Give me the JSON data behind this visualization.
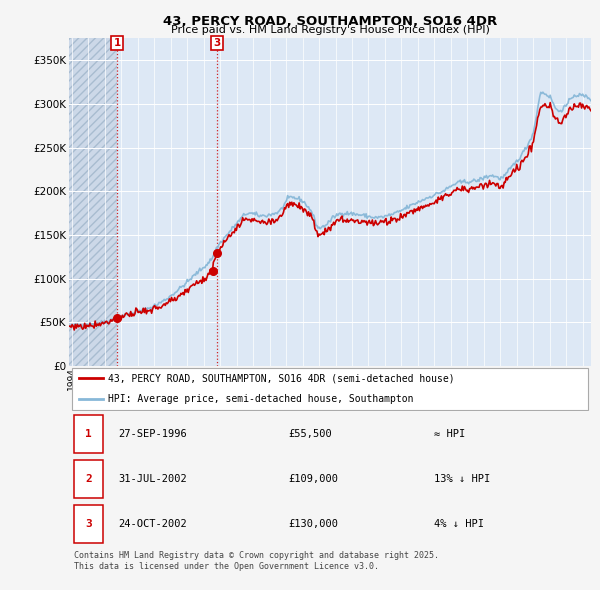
{
  "title_line1": "43, PERCY ROAD, SOUTHAMPTON, SO16 4DR",
  "title_line2": "Price paid vs. HM Land Registry's House Price Index (HPI)",
  "legend_line1": "43, PERCY ROAD, SOUTHAMPTON, SO16 4DR (semi-detached house)",
  "legend_line2": "HPI: Average price, semi-detached house, Southampton",
  "sales": [
    {
      "num": 1,
      "date_label": "27-SEP-1996",
      "date_x": 1996.74,
      "price": 55500,
      "hpi_rel": "≈ HPI"
    },
    {
      "num": 2,
      "date_label": "31-JUL-2002",
      "date_x": 2002.58,
      "price": 109000,
      "hpi_rel": "13% ↓ HPI"
    },
    {
      "num": 3,
      "date_label": "24-OCT-2002",
      "date_x": 2002.81,
      "price": 130000,
      "hpi_rel": "4% ↓ HPI"
    }
  ],
  "footnote": "Contains HM Land Registry data © Crown copyright and database right 2025.\nThis data is licensed under the Open Government Licence v3.0.",
  "bg_color": "#f5f5f5",
  "plot_bg": "#dde8f5",
  "grid_color": "#ffffff",
  "red_line_color": "#cc0000",
  "blue_line_color": "#88b8d8",
  "dot_color": "#cc0000",
  "vline_color": "#cc0000",
  "marker_box_color": "#cc0000",
  "hatch_bg": "#ccd8e8",
  "ylim": [
    0,
    375000
  ],
  "xlim_start": 1993.83,
  "xlim_end": 2025.5
}
